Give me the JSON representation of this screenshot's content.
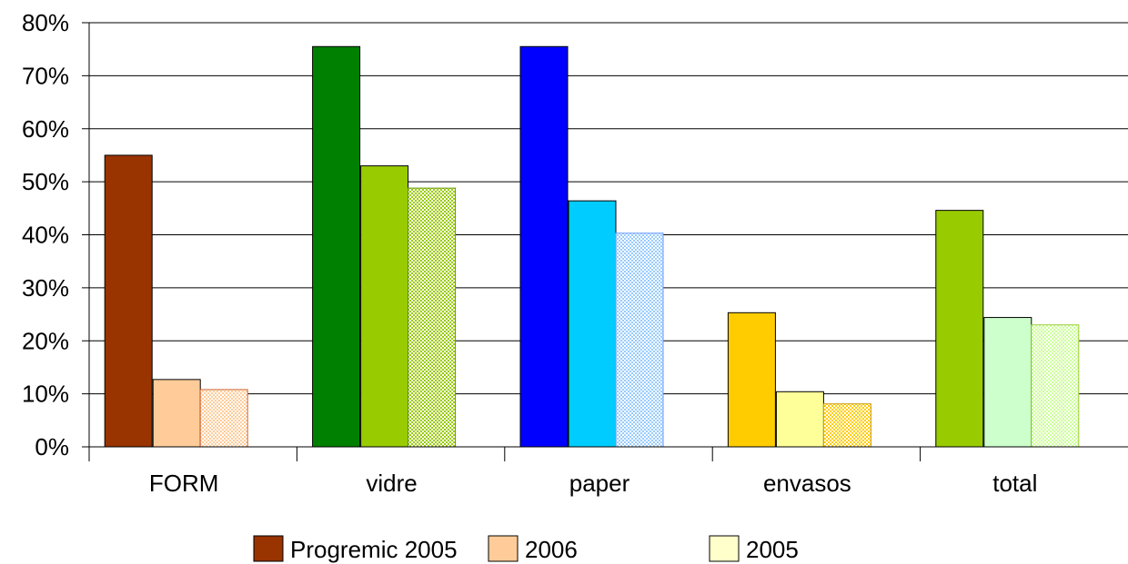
{
  "chart_data": {
    "type": "bar",
    "title": "",
    "xlabel": "",
    "ylabel": "",
    "ylim": [
      0,
      0.8
    ],
    "yticks": [
      "0%",
      "10%",
      "20%",
      "30%",
      "40%",
      "50%",
      "60%",
      "70%",
      "80%"
    ],
    "grid": true,
    "legend_position": "bottom",
    "categories": [
      "FORM",
      "vidre",
      "paper",
      "envasos",
      "total"
    ],
    "series": [
      {
        "name": "Progremic 2005",
        "values": [
          0.55,
          0.755,
          0.755,
          0.253,
          0.446
        ],
        "colors": [
          "#993300",
          "#008000",
          "#0000ff",
          "#ffcc00",
          "#99cc00"
        ],
        "pattern": "solid"
      },
      {
        "name": "2006",
        "values": [
          0.127,
          0.53,
          0.464,
          0.104,
          0.244
        ],
        "colors": [
          "#ffcc99",
          "#99cc00",
          "#00ccff",
          "#ffff99",
          "#ccffcc"
        ],
        "pattern": "solid"
      },
      {
        "name": "2005",
        "values": [
          0.108,
          0.488,
          0.403,
          0.081,
          0.23
        ],
        "colors": [
          "#ffcc99",
          "#99cc00",
          "#99ccff",
          "#ffcc00",
          "#ccff99"
        ],
        "borders": [
          "#cc6633",
          "#669900",
          "#6699ff",
          "#cc9900",
          "#99cc33"
        ],
        "pattern": "checker"
      }
    ],
    "legend": [
      {
        "label": "Progremic 2005",
        "swatch": "#993300"
      },
      {
        "label": "2006",
        "swatch": "#ffcc99"
      },
      {
        "label": "2005",
        "swatch": "#ffffcc"
      }
    ]
  }
}
